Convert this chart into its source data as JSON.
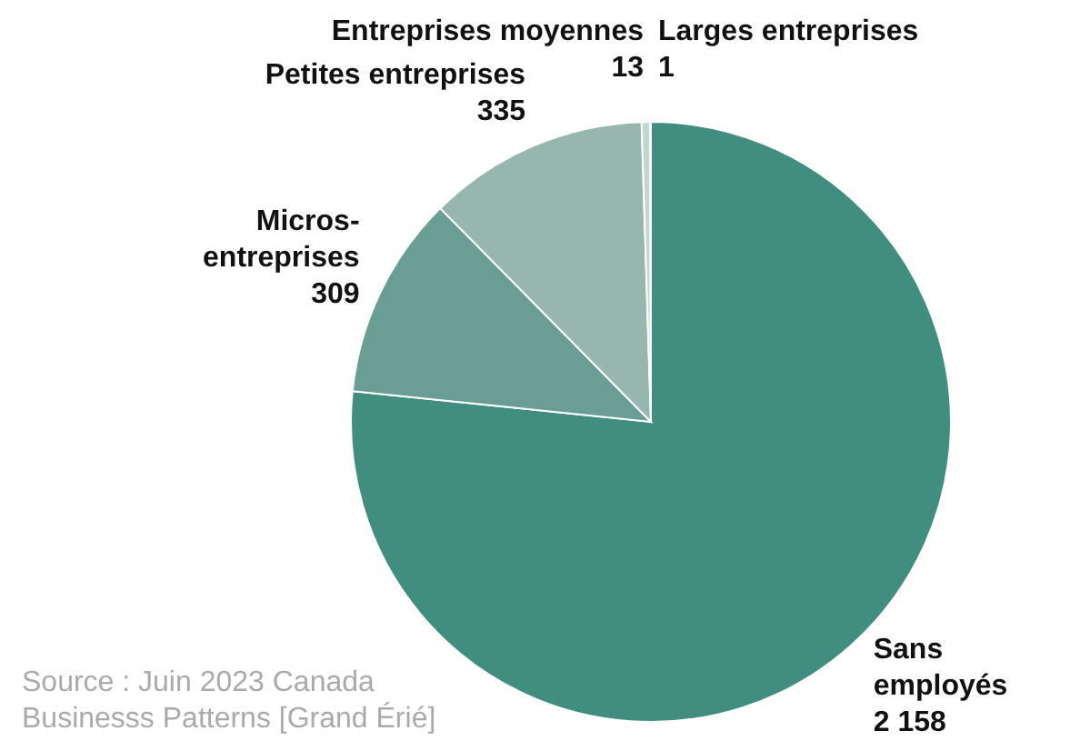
{
  "chart_data": {
    "type": "pie",
    "categories": [
      "Sans employés",
      "Micros-entreprises",
      "Petites entreprises",
      "Entreprises moyennes",
      "Larges entreprises"
    ],
    "values": [
      2158,
      309,
      335,
      13,
      1
    ],
    "value_labels": [
      "2 158",
      "309",
      "335",
      "13",
      "1"
    ],
    "colors": [
      "#418e80",
      "#6a9e94",
      "#97b7ae",
      "#c3d6d1",
      "#e6ecea"
    ],
    "annotations": [
      "Source : Juin 2023 Canada Businesss Patterns [Grand Érié]"
    ]
  }
}
